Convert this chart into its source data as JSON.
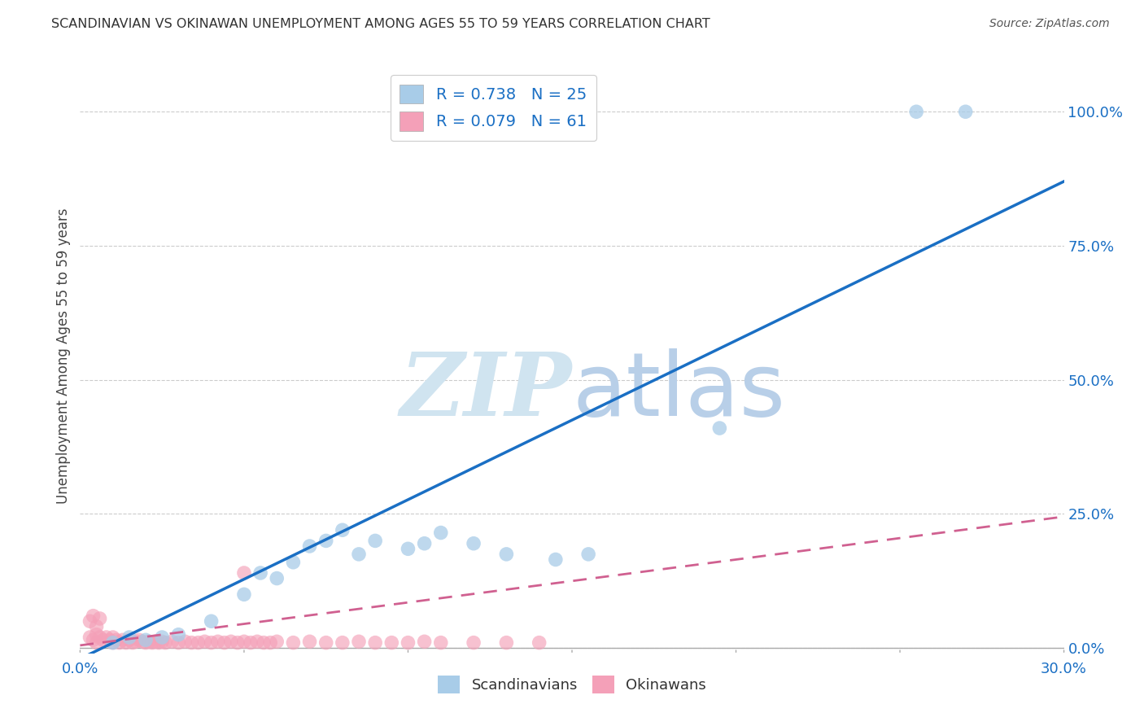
{
  "title": "SCANDINAVIAN VS OKINAWAN UNEMPLOYMENT AMONG AGES 55 TO 59 YEARS CORRELATION CHART",
  "source": "Source: ZipAtlas.com",
  "ylabel": "Unemployment Among Ages 55 to 59 years",
  "xlim": [
    0.0,
    0.3
  ],
  "ylim": [
    -0.01,
    1.1
  ],
  "xticks": [
    0.0,
    0.05,
    0.1,
    0.15,
    0.2,
    0.25,
    0.3
  ],
  "yticks": [
    0.0,
    0.25,
    0.5,
    0.75,
    1.0
  ],
  "yticklabels": [
    "0.0%",
    "25.0%",
    "50.0%",
    "75.0%",
    "100.0%"
  ],
  "blue_scatter_x": [
    0.01,
    0.015,
    0.02,
    0.025,
    0.03,
    0.04,
    0.05,
    0.055,
    0.06,
    0.065,
    0.07,
    0.075,
    0.08,
    0.085,
    0.09,
    0.1,
    0.105,
    0.11,
    0.12,
    0.13,
    0.145,
    0.155,
    0.195,
    0.255,
    0.27
  ],
  "blue_scatter_y": [
    0.01,
    0.02,
    0.015,
    0.02,
    0.025,
    0.05,
    0.1,
    0.14,
    0.13,
    0.16,
    0.19,
    0.2,
    0.22,
    0.175,
    0.2,
    0.185,
    0.195,
    0.215,
    0.195,
    0.175,
    0.165,
    0.175,
    0.41,
    1.0,
    1.0
  ],
  "pink_scatter_x": [
    0.003,
    0.004,
    0.005,
    0.005,
    0.006,
    0.007,
    0.008,
    0.009,
    0.01,
    0.01,
    0.011,
    0.012,
    0.013,
    0.014,
    0.015,
    0.016,
    0.017,
    0.018,
    0.019,
    0.02,
    0.021,
    0.022,
    0.023,
    0.024,
    0.025,
    0.026,
    0.028,
    0.03,
    0.032,
    0.034,
    0.036,
    0.038,
    0.04,
    0.042,
    0.044,
    0.046,
    0.048,
    0.05,
    0.052,
    0.054,
    0.056,
    0.058,
    0.06,
    0.065,
    0.07,
    0.075,
    0.08,
    0.085,
    0.09,
    0.095,
    0.1,
    0.105,
    0.11,
    0.12,
    0.13,
    0.14,
    0.003,
    0.004,
    0.005,
    0.006,
    0.05
  ],
  "pink_scatter_y": [
    0.02,
    0.015,
    0.01,
    0.025,
    0.02,
    0.015,
    0.02,
    0.015,
    0.01,
    0.02,
    0.015,
    0.01,
    0.015,
    0.01,
    0.015,
    0.01,
    0.012,
    0.015,
    0.012,
    0.01,
    0.012,
    0.01,
    0.012,
    0.01,
    0.012,
    0.01,
    0.012,
    0.01,
    0.012,
    0.01,
    0.01,
    0.012,
    0.01,
    0.012,
    0.01,
    0.012,
    0.01,
    0.012,
    0.01,
    0.012,
    0.01,
    0.01,
    0.012,
    0.01,
    0.012,
    0.01,
    0.01,
    0.012,
    0.01,
    0.01,
    0.01,
    0.012,
    0.01,
    0.01,
    0.01,
    0.01,
    0.05,
    0.06,
    0.04,
    0.055,
    0.14
  ],
  "blue_R": 0.738,
  "blue_N": 25,
  "pink_R": 0.079,
  "pink_N": 61,
  "blue_scatter_color": "#a8cce8",
  "pink_scatter_color": "#f4a0b8",
  "pink_solid_color": "#e05090",
  "blue_line_color": "#1a6fc4",
  "pink_line_color": "#d06090",
  "watermark_color": "#d0e4f0",
  "background_color": "#ffffff",
  "grid_color": "#cccccc",
  "tick_color": "#1a6fc4",
  "title_color": "#333333",
  "ylabel_color": "#444444"
}
